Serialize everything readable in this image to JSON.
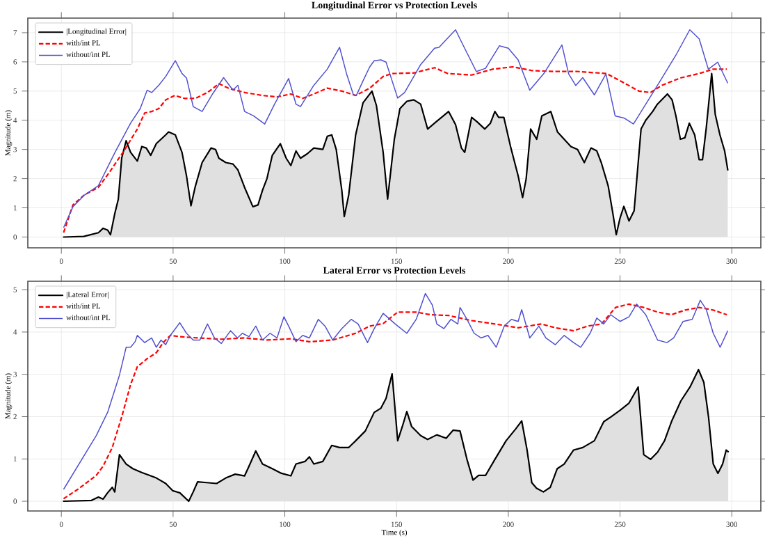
{
  "chart_data": [
    {
      "type": "line",
      "title": "Longitudinal Error vs Protection Levels",
      "ylabel": "Magnitude (m)",
      "xlim": [
        -15,
        313
      ],
      "ylim": [
        -0.37,
        7.5
      ],
      "xticks": [
        0,
        50,
        100,
        150,
        200,
        250,
        300
      ],
      "yticks": [
        0,
        1,
        2,
        3,
        4,
        5,
        6,
        7
      ],
      "grid": true,
      "legend": "top left",
      "series": [
        {
          "name": "|Longitudinal Error|",
          "type": "area",
          "color": "#000000",
          "line_style": "solid",
          "x": [
            1,
            10,
            16.6,
            18.7,
            20.7,
            22,
            23.9,
            25.5,
            27,
            29,
            31,
            34,
            36,
            38,
            40,
            42.5,
            46.7,
            48,
            51,
            54,
            56,
            58,
            60,
            63,
            67,
            69,
            70.5,
            73.6,
            76.8,
            79,
            82,
            85.7,
            88,
            90,
            92,
            94.4,
            98,
            100.6,
            102.7,
            105,
            107,
            110,
            113,
            117,
            119,
            121,
            123,
            125.5,
            126.6,
            128.6,
            131.7,
            135,
            139,
            141,
            144,
            146,
            149,
            151.5,
            154.6,
            157.7,
            160.8,
            163.9,
            167,
            173.3,
            176.4,
            179,
            180.5,
            183.6,
            186,
            189.5,
            192,
            194,
            195.7,
            198,
            201,
            204.4,
            206.4,
            208,
            210,
            212.7,
            215,
            219,
            222,
            225,
            228,
            231,
            234,
            237,
            239.6,
            241.6,
            244.7,
            246.8,
            248.3,
            250,
            251.7,
            254,
            256.3,
            259.4,
            261.5,
            264.6,
            266.7,
            271.2,
            273.3,
            275,
            277,
            279,
            281,
            283.4,
            285.4,
            286.9,
            288.6,
            291,
            292.6,
            294.7,
            296.8,
            298.2
          ],
          "values": [
            0,
            0.02,
            0.15,
            0.3,
            0.24,
            0.08,
            0.8,
            1.3,
            2.7,
            3.3,
            2.9,
            2.6,
            3.1,
            3.05,
            2.8,
            3.2,
            3.5,
            3.6,
            3.5,
            2.9,
            2.1,
            1.07,
            1.75,
            2.55,
            3.05,
            3.0,
            2.7,
            2.55,
            2.5,
            2.3,
            1.7,
            1.04,
            1.1,
            1.6,
            2.0,
            2.8,
            3.2,
            2.7,
            2.45,
            2.95,
            2.7,
            2.85,
            3.05,
            3.0,
            3.45,
            3.5,
            3.0,
            1.6,
            0.7,
            1.45,
            3.5,
            4.6,
            5.0,
            4.5,
            2.9,
            1.3,
            3.35,
            4.4,
            4.65,
            4.7,
            4.55,
            3.7,
            3.9,
            4.3,
            3.85,
            3.05,
            2.9,
            4.1,
            3.95,
            3.7,
            3.9,
            4.3,
            4.1,
            4.1,
            3.1,
            2.1,
            1.35,
            2.0,
            3.7,
            3.35,
            4.15,
            4.3,
            3.6,
            3.35,
            3.1,
            3.0,
            2.55,
            3.05,
            2.95,
            2.55,
            1.75,
            0.8,
            0.08,
            0.65,
            1.05,
            0.55,
            0.9,
            3.7,
            4.0,
            4.3,
            4.55,
            4.9,
            4.7,
            4.15,
            3.35,
            3.4,
            3.9,
            3.5,
            2.65,
            2.65,
            3.75,
            5.6,
            4.2,
            3.5,
            2.95,
            2.3
          ]
        },
        {
          "name": "with/int PL",
          "type": "line",
          "color": "#ff0000",
          "line_style": "dashed",
          "x": [
            1,
            5.2,
            10.4,
            16.6,
            21.8,
            28,
            34,
            37.3,
            40.4,
            43.6,
            46.7,
            50.8,
            55,
            60,
            65.4,
            70.5,
            74.7,
            82,
            90,
            96.5,
            102.7,
            108,
            113,
            119,
            125.5,
            131.7,
            138,
            144,
            148,
            157.7,
            167,
            173,
            183.6,
            193,
            202,
            210.7,
            221,
            231,
            244,
            252,
            258.4,
            263.6,
            268.8,
            277,
            285.4,
            291.6,
            297.8
          ],
          "values": [
            0.15,
            1.1,
            1.45,
            1.7,
            2.25,
            2.95,
            3.7,
            4.25,
            4.3,
            4.4,
            4.7,
            4.85,
            4.75,
            4.75,
            4.95,
            5.25,
            5.1,
            4.95,
            4.85,
            4.8,
            4.9,
            4.75,
            4.9,
            5.1,
            5.0,
            4.85,
            5.1,
            5.5,
            5.6,
            5.62,
            5.8,
            5.6,
            5.55,
            5.75,
            5.83,
            5.7,
            5.67,
            5.67,
            5.6,
            5.27,
            5.0,
            4.95,
            5.2,
            5.45,
            5.6,
            5.75,
            5.75
          ]
        },
        {
          "name": "without/int PL",
          "type": "line",
          "color": "#5050d0",
          "line_style": "solid",
          "x": [
            1,
            5.2,
            10.4,
            16.6,
            24,
            31,
            35.3,
            38.4,
            40.4,
            43.6,
            46.7,
            51,
            54,
            56,
            59,
            63,
            67.4,
            72.6,
            76.8,
            79,
            82,
            86,
            91,
            95.4,
            101.7,
            105,
            107,
            113,
            119,
            124.5,
            127.6,
            130.7,
            132,
            135,
            138,
            140,
            143,
            145.3,
            150.5,
            153.6,
            160.8,
            167,
            169,
            176.4,
            179.4,
            185.7,
            189.8,
            196,
            200,
            204.4,
            209.6,
            215.8,
            224,
            227,
            230.2,
            233.3,
            238.5,
            243.7,
            247.8,
            252,
            256,
            266.7,
            275,
            281.2,
            285.4,
            289.5,
            293.7,
            298.2
          ],
          "values": [
            0.32,
            1.04,
            1.44,
            1.76,
            2.9,
            3.9,
            4.4,
            5.03,
            4.95,
            5.2,
            5.5,
            6.04,
            5.6,
            5.45,
            4.47,
            4.3,
            4.87,
            5.46,
            5.03,
            5.2,
            4.3,
            4.15,
            3.87,
            4.55,
            5.43,
            4.55,
            4.47,
            5.2,
            5.75,
            6.5,
            5.6,
            4.87,
            4.85,
            5.35,
            5.83,
            6.04,
            6.07,
            5.99,
            4.76,
            4.95,
            5.91,
            6.47,
            6.5,
            7.1,
            6.63,
            5.67,
            5.78,
            6.55,
            6.47,
            6.07,
            5.03,
            5.59,
            6.58,
            5.59,
            5.19,
            5.46,
            4.87,
            5.59,
            4.15,
            4.07,
            3.87,
            5.19,
            6.23,
            7.1,
            6.79,
            5.75,
            5.99,
            5.27
          ]
        }
      ]
    },
    {
      "type": "line",
      "title": "Lateral Error vs Protection Levels",
      "xlabel": "Time (s)",
      "ylabel": "Magnitude (m)",
      "xlim": [
        -15,
        313
      ],
      "ylim": [
        -0.23,
        5.2
      ],
      "xticks": [
        0,
        50,
        100,
        150,
        200,
        250,
        300
      ],
      "yticks": [
        0,
        1,
        2,
        3,
        4,
        5
      ],
      "grid": true,
      "legend": "top left",
      "series": [
        {
          "name": "|Lateral Error|",
          "type": "area",
          "color": "#000000",
          "line_style": "solid",
          "x": [
            1,
            13.5,
            16.6,
            18.7,
            20.7,
            22.8,
            23.9,
            26,
            29,
            32,
            36,
            42.5,
            46.7,
            49.8,
            53,
            57,
            59,
            61,
            65,
            69.5,
            73.6,
            77.8,
            82,
            84,
            87,
            90,
            94.4,
            98.5,
            102.7,
            105,
            109,
            111,
            113,
            117,
            121,
            124.5,
            128.6,
            131.7,
            136,
            140,
            143,
            145.3,
            148,
            150.5,
            152.6,
            154.6,
            156.7,
            160.8,
            163.9,
            168,
            172.2,
            175.3,
            178.4,
            181.5,
            184.2,
            186.7,
            189.8,
            194,
            199,
            203.3,
            206,
            208.4,
            210.5,
            212.6,
            215.7,
            218.8,
            221.9,
            225,
            229.2,
            233.3,
            238.5,
            242.7,
            245.8,
            250,
            254,
            258.1,
            260.6,
            263.7,
            266.8,
            269.9,
            273,
            277.2,
            281.3,
            285.1,
            287.5,
            289.6,
            291.7,
            293.8,
            295.9,
            297.5,
            298.4
          ],
          "values": [
            0,
            0.02,
            0.1,
            0.05,
            0.2,
            0.33,
            0.22,
            1.1,
            0.88,
            0.77,
            0.68,
            0.55,
            0.42,
            0.25,
            0.2,
            0.0,
            0.22,
            0.46,
            0.44,
            0.42,
            0.55,
            0.64,
            0.6,
            0.83,
            1.19,
            0.88,
            0.77,
            0.66,
            0.6,
            0.88,
            0.94,
            1.05,
            0.88,
            0.94,
            1.32,
            1.27,
            1.27,
            1.43,
            1.66,
            2.1,
            2.2,
            2.43,
            3.01,
            1.43,
            1.77,
            2.12,
            1.77,
            1.55,
            1.46,
            1.57,
            1.49,
            1.68,
            1.66,
            0.99,
            0.5,
            0.61,
            0.61,
            0.99,
            1.43,
            1.71,
            1.9,
            1.21,
            0.44,
            0.31,
            0.22,
            0.33,
            0.77,
            0.88,
            1.21,
            1.27,
            1.43,
            1.88,
            1.99,
            2.15,
            2.32,
            2.7,
            1.1,
            0.99,
            1.16,
            1.43,
            1.88,
            2.37,
            2.7,
            3.11,
            2.81,
            1.99,
            0.88,
            0.66,
            0.88,
            1.21,
            1.17
          ]
        },
        {
          "name": "with/int PL",
          "type": "line",
          "color": "#ff0000",
          "line_style": "dashed",
          "x": [
            1,
            7.3,
            15.6,
            18.7,
            22.8,
            27,
            31,
            34,
            38.4,
            42.5,
            45.6,
            48.8,
            53,
            61,
            71.6,
            82,
            92,
            102.7,
            111,
            121.4,
            131.7,
            138,
            144,
            150.5,
            158.8,
            165,
            173.3,
            183.6,
            194,
            204.4,
            214.8,
            221,
            229.2,
            235.5,
            241.7,
            248,
            254,
            260.6,
            266.8,
            273,
            279.2,
            285.4,
            291.6,
            297.8
          ],
          "values": [
            0.06,
            0.28,
            0.61,
            0.83,
            1.27,
            1.99,
            2.76,
            3.18,
            3.37,
            3.51,
            3.75,
            3.92,
            3.89,
            3.86,
            3.83,
            3.86,
            3.81,
            3.84,
            3.77,
            3.81,
            3.97,
            4.14,
            4.2,
            4.47,
            4.47,
            4.41,
            4.39,
            4.27,
            4.19,
            4.1,
            4.19,
            4.1,
            4.03,
            4.14,
            4.19,
            4.58,
            4.66,
            4.58,
            4.47,
            4.41,
            4.52,
            4.58,
            4.52,
            4.41
          ]
        },
        {
          "name": "without/int PL",
          "type": "line",
          "color": "#5050d0",
          "line_style": "solid",
          "x": [
            1,
            15.6,
            20.7,
            26,
            29,
            31,
            33,
            34,
            37.3,
            40.4,
            42.5,
            44.6,
            46.7,
            48.8,
            53,
            56,
            59,
            62,
            65.4,
            68.5,
            71.6,
            75.7,
            78.8,
            81,
            84,
            87,
            90,
            93.4,
            96.5,
            99.6,
            101.7,
            105,
            108,
            111,
            115,
            118,
            121.4,
            125.5,
            129.7,
            132.8,
            137,
            140,
            144,
            149.4,
            154.6,
            158.8,
            162.9,
            166,
            168,
            171.2,
            174.3,
            177.4,
            178.4,
            181.5,
            184.7,
            187.8,
            190.9,
            194.6,
            198.2,
            201.4,
            204.4,
            206,
            209.6,
            213.7,
            216.8,
            221,
            225,
            229.2,
            232.4,
            236.6,
            239.6,
            242.7,
            245.8,
            250,
            254,
            257.4,
            261.5,
            266.8,
            271,
            274,
            278.2,
            282.3,
            285.9,
            288.6,
            291.7,
            294.8,
            298.2
          ],
          "values": [
            0.28,
            1.55,
            2.1,
            2.98,
            3.64,
            3.64,
            3.77,
            3.92,
            3.75,
            3.86,
            3.64,
            3.81,
            3.7,
            3.92,
            4.22,
            3.97,
            3.81,
            3.81,
            4.19,
            3.86,
            3.73,
            4.03,
            3.86,
            3.97,
            3.89,
            4.14,
            3.81,
            3.97,
            3.86,
            4.36,
            4.14,
            3.77,
            3.92,
            3.86,
            4.3,
            4.14,
            3.81,
            4.08,
            4.3,
            4.19,
            3.75,
            4.08,
            4.44,
            4.19,
            3.97,
            4.3,
            4.91,
            4.64,
            4.19,
            4.08,
            4.3,
            4.19,
            4.58,
            4.3,
            3.97,
            3.86,
            3.92,
            3.64,
            4.14,
            4.3,
            4.25,
            4.53,
            3.86,
            4.14,
            3.86,
            3.7,
            3.92,
            3.75,
            3.64,
            3.97,
            4.33,
            4.19,
            4.41,
            4.25,
            4.36,
            4.66,
            4.41,
            3.81,
            3.75,
            3.86,
            4.25,
            4.3,
            4.75,
            4.53,
            3.97,
            3.64,
            4.03
          ]
        }
      ]
    }
  ]
}
